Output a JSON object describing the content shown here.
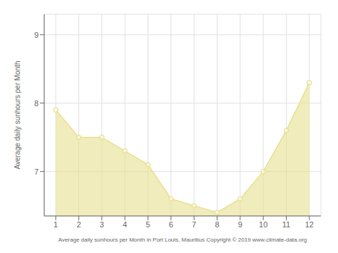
{
  "chart_data": {
    "type": "area",
    "x": [
      1,
      2,
      3,
      4,
      5,
      6,
      7,
      8,
      9,
      10,
      11,
      12
    ],
    "series": [
      {
        "name": "Average daily sunhours per Month",
        "color": "#e8e090",
        "marker": "circle",
        "values": [
          7.9,
          7.5,
          7.5,
          7.3,
          7.1,
          6.6,
          6.5,
          6.4,
          6.6,
          7.0,
          7.6,
          8.3
        ]
      }
    ],
    "xlabel": "Average daily sunhours per Month in Port Louis, Mauritius Copyright © 2019 www.climate-data.org",
    "ylabel": "Average daily sunhours per Month",
    "xlim": [
      0.5,
      12.5
    ],
    "xticks": [
      1,
      2,
      3,
      4,
      5,
      6,
      7,
      8,
      9,
      10,
      11,
      12
    ],
    "ylim": [
      6.35,
      9.3
    ],
    "yticks": [
      7,
      8,
      9
    ],
    "grid": true
  }
}
